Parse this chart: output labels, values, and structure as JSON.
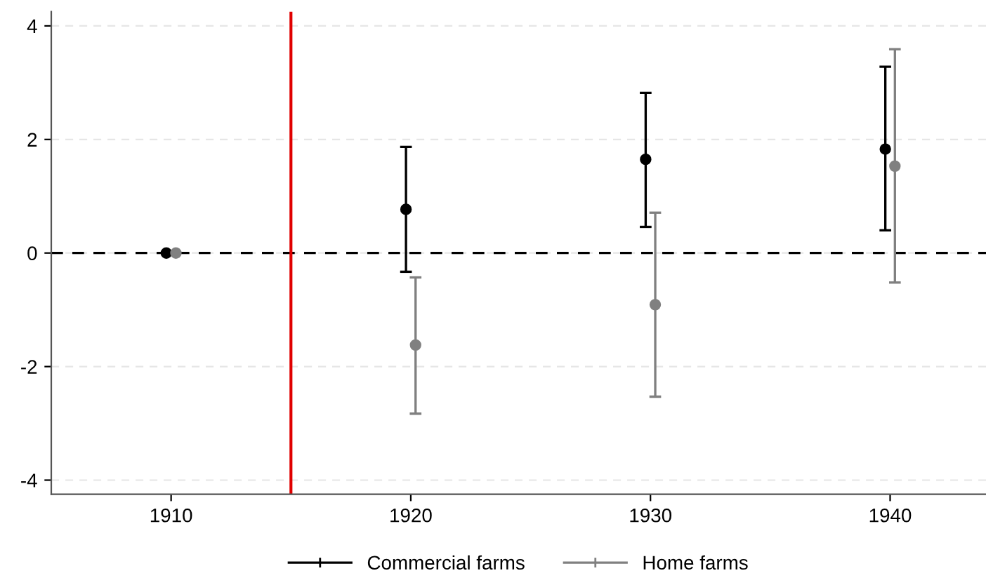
{
  "chart_data": {
    "type": "scatter",
    "xlim": [
      1905,
      1944
    ],
    "xticks": [
      1910,
      1920,
      1930,
      1940
    ],
    "ylim": [
      -4.25,
      4.25
    ],
    "yticks": [
      -4,
      -2,
      0,
      2,
      4
    ],
    "grid": "y",
    "legend": "bottom",
    "marker": "circle",
    "series": [
      {
        "name": "Commercial farms",
        "color": "#000000",
        "x": [
          1909.8,
          1919.8,
          1929.8,
          1939.8
        ],
        "values": [
          0,
          0.77,
          1.65,
          1.83
        ],
        "errors": [
          null,
          [
            -0.33,
            1.87
          ],
          [
            0.46,
            2.82
          ],
          [
            0.4,
            3.28
          ]
        ]
      },
      {
        "name": "Home farms",
        "color": "#808080",
        "x": [
          1910.2,
          1920.2,
          1930.2,
          1940.2
        ],
        "values": [
          0,
          -1.62,
          -0.91,
          1.53
        ],
        "errors": [
          null,
          [
            -2.83,
            -0.43
          ],
          [
            -2.53,
            0.71
          ],
          [
            -0.52,
            3.59
          ]
        ]
      }
    ],
    "ref_lines": [
      {
        "axis": "y",
        "value": 0,
        "color": "#000000",
        "line_style": "dashed"
      },
      {
        "axis": "x",
        "value": 1915,
        "color": "#e00000",
        "line_style": "solid"
      }
    ]
  }
}
